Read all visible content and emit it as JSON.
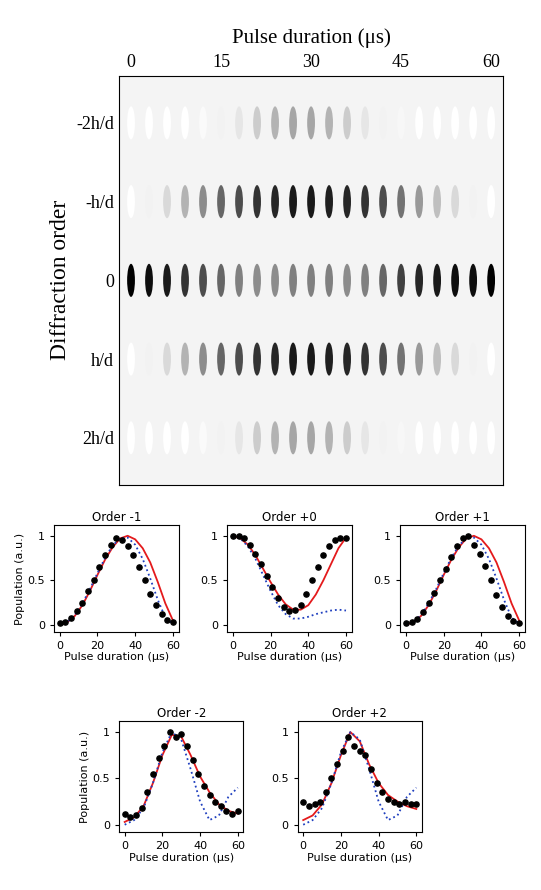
{
  "chart_data": [
    {
      "type": "heatmap",
      "xlabel": "Pulse duration (μs)",
      "ylabel": "Diffraction order",
      "categories": [
        "-2h/d",
        "-h/d",
        "0",
        "h/d",
        "2h/d"
      ],
      "x": [
        0,
        3,
        6,
        9,
        12,
        15,
        18,
        21,
        24,
        27,
        30,
        33,
        36,
        39,
        42,
        45,
        48,
        51,
        54,
        57,
        60
      ],
      "cells": [
        [
          0,
          0,
          0,
          0,
          0.02,
          0.05,
          0.1,
          0.2,
          0.3,
          0.35,
          0.35,
          0.3,
          0.2,
          0.1,
          0.05,
          0.03,
          0,
          0,
          0,
          0,
          0
        ],
        [
          0,
          0.05,
          0.15,
          0.3,
          0.45,
          0.6,
          0.7,
          0.8,
          0.85,
          0.9,
          0.9,
          0.88,
          0.85,
          0.8,
          0.7,
          0.55,
          0.4,
          0.25,
          0.15,
          0.05,
          0
        ],
        [
          1,
          0.95,
          0.9,
          0.8,
          0.7,
          0.6,
          0.5,
          0.45,
          0.45,
          0.5,
          0.5,
          0.5,
          0.45,
          0.5,
          0.6,
          0.75,
          0.85,
          0.9,
          0.95,
          0.95,
          1
        ],
        [
          0,
          0.05,
          0.15,
          0.3,
          0.45,
          0.6,
          0.7,
          0.8,
          0.85,
          0.9,
          0.9,
          0.88,
          0.85,
          0.8,
          0.7,
          0.55,
          0.4,
          0.25,
          0.15,
          0.05,
          0
        ],
        [
          0,
          0,
          0,
          0,
          0.02,
          0.05,
          0.1,
          0.2,
          0.3,
          0.35,
          0.35,
          0.3,
          0.2,
          0.1,
          0.05,
          0.03,
          0,
          0,
          0,
          0,
          0
        ]
      ],
      "xlim": [
        -2,
        62
      ],
      "xticks": [
        0,
        15,
        30,
        45,
        60
      ],
      "color": "#000000"
    },
    {
      "type": "line",
      "title": "Order -1",
      "xlabel": "Pulse duration (μs)",
      "ylabel": "Population (a.u.)",
      "xlim": [
        -3,
        63
      ],
      "xticks": [
        0,
        20,
        40,
        60
      ],
      "ylim": [
        -0.08,
        1.12
      ],
      "yticks": [
        0,
        0.5,
        1
      ],
      "series": [
        {
          "type": "scatter",
          "color": "#000000",
          "marker": "circle",
          "x": [
            0,
            3,
            6,
            9,
            12,
            15,
            18,
            21,
            24,
            27,
            30,
            33,
            36,
            39,
            42,
            45,
            48,
            51,
            54,
            57,
            60
          ],
          "values": [
            0.02,
            0.03,
            0.08,
            0.15,
            0.25,
            0.38,
            0.5,
            0.65,
            0.78,
            0.9,
            0.98,
            0.95,
            0.88,
            0.78,
            0.65,
            0.5,
            0.35,
            0.22,
            0.12,
            0.05,
            0.03
          ]
        },
        {
          "type": "line",
          "color": "#e41a1c",
          "line_style": "solid",
          "x": [
            0,
            4,
            8,
            12,
            16,
            20,
            24,
            28,
            32,
            36,
            40,
            44,
            48,
            52,
            56,
            60
          ],
          "values": [
            0,
            0.03,
            0.1,
            0.22,
            0.38,
            0.56,
            0.73,
            0.87,
            0.97,
            1.0,
            0.96,
            0.86,
            0.7,
            0.48,
            0.24,
            0.05
          ]
        },
        {
          "type": "line",
          "color": "#1f3fbf",
          "line_style": "dotted",
          "x": [
            0,
            4,
            8,
            12,
            16,
            20,
            24,
            28,
            32,
            36,
            40,
            44,
            48,
            52,
            56,
            60
          ],
          "values": [
            0,
            0.03,
            0.11,
            0.24,
            0.4,
            0.58,
            0.75,
            0.89,
            0.97,
            0.98,
            0.9,
            0.74,
            0.52,
            0.28,
            0.08,
            0.01
          ]
        }
      ]
    },
    {
      "type": "line",
      "title": "Order +0",
      "xlabel": "Pulse duration (μs)",
      "xlim": [
        -3,
        63
      ],
      "xticks": [
        0,
        20,
        40,
        60
      ],
      "ylim": [
        -0.08,
        1.12
      ],
      "yticks": [
        0,
        0.5,
        1
      ],
      "series": [
        {
          "type": "scatter",
          "color": "#000000",
          "marker": "circle",
          "x": [
            0,
            3,
            6,
            9,
            12,
            15,
            18,
            21,
            24,
            27,
            30,
            33,
            36,
            39,
            42,
            45,
            48,
            51,
            54,
            57,
            60
          ],
          "values": [
            1,
            1,
            0.97,
            0.9,
            0.8,
            0.68,
            0.55,
            0.42,
            0.3,
            0.2,
            0.15,
            0.17,
            0.22,
            0.35,
            0.5,
            0.65,
            0.78,
            0.88,
            0.95,
            0.98,
            0.98
          ]
        },
        {
          "type": "line",
          "color": "#e41a1c",
          "line_style": "solid",
          "x": [
            0,
            4,
            8,
            12,
            16,
            20,
            24,
            28,
            32,
            36,
            40,
            44,
            48,
            52,
            56,
            60
          ],
          "values": [
            1,
            0.97,
            0.9,
            0.78,
            0.63,
            0.48,
            0.34,
            0.23,
            0.17,
            0.17,
            0.22,
            0.34,
            0.5,
            0.68,
            0.86,
            0.98
          ]
        },
        {
          "type": "line",
          "color": "#1f3fbf",
          "line_style": "dotted",
          "x": [
            0,
            4,
            8,
            12,
            16,
            20,
            24,
            28,
            32,
            36,
            40,
            44,
            48,
            52,
            56,
            60
          ],
          "values": [
            1,
            0.97,
            0.88,
            0.74,
            0.56,
            0.38,
            0.22,
            0.12,
            0.07,
            0.07,
            0.09,
            0.12,
            0.14,
            0.16,
            0.17,
            0.16
          ]
        }
      ]
    },
    {
      "type": "line",
      "title": "Order +1",
      "xlabel": "Pulse duration (μs)",
      "xlim": [
        -3,
        63
      ],
      "xticks": [
        0,
        20,
        40,
        60
      ],
      "ylim": [
        -0.08,
        1.12
      ],
      "yticks": [
        0,
        0.5,
        1
      ],
      "series": [
        {
          "type": "scatter",
          "color": "#000000",
          "marker": "circle",
          "x": [
            0,
            3,
            6,
            9,
            12,
            15,
            18,
            21,
            24,
            27,
            30,
            33,
            36,
            39,
            42,
            45,
            48,
            51,
            54,
            57,
            60
          ],
          "values": [
            0.02,
            0.03,
            0.07,
            0.14,
            0.24,
            0.36,
            0.5,
            0.63,
            0.76,
            0.88,
            0.97,
            1.0,
            0.9,
            0.8,
            0.66,
            0.5,
            0.34,
            0.2,
            0.1,
            0.04,
            0.02
          ]
        },
        {
          "type": "line",
          "color": "#e41a1c",
          "line_style": "solid",
          "x": [
            0,
            4,
            8,
            12,
            16,
            20,
            24,
            28,
            32,
            36,
            40,
            44,
            48,
            52,
            56,
            60
          ],
          "values": [
            0,
            0.03,
            0.1,
            0.22,
            0.38,
            0.56,
            0.73,
            0.87,
            0.97,
            1.0,
            0.96,
            0.86,
            0.7,
            0.48,
            0.24,
            0.05
          ]
        },
        {
          "type": "line",
          "color": "#1f3fbf",
          "line_style": "dotted",
          "x": [
            0,
            4,
            8,
            12,
            16,
            20,
            24,
            28,
            32,
            36,
            40,
            44,
            48,
            52,
            56,
            60
          ],
          "values": [
            0,
            0.03,
            0.11,
            0.24,
            0.4,
            0.58,
            0.75,
            0.89,
            0.97,
            0.98,
            0.9,
            0.74,
            0.52,
            0.28,
            0.08,
            0.01
          ]
        }
      ]
    },
    {
      "type": "line",
      "title": "Order -2",
      "xlabel": "Pulse duration (μs)",
      "ylabel": "Population (a.u.)",
      "xlim": [
        -3,
        63
      ],
      "xticks": [
        0,
        20,
        40,
        60
      ],
      "ylim": [
        -0.08,
        1.12
      ],
      "yticks": [
        0,
        0.5,
        1
      ],
      "series": [
        {
          "type": "scatter",
          "color": "#000000",
          "marker": "circle",
          "x": [
            0,
            3,
            6,
            9,
            12,
            15,
            18,
            21,
            24,
            27,
            30,
            33,
            36,
            39,
            42,
            45,
            48,
            51,
            54,
            57,
            60
          ],
          "values": [
            0.12,
            0.08,
            0.1,
            0.18,
            0.35,
            0.55,
            0.72,
            0.85,
            1.0,
            0.95,
            0.98,
            0.85,
            0.7,
            0.55,
            0.42,
            0.32,
            0.25,
            0.2,
            0.15,
            0.12,
            0.15
          ]
        },
        {
          "type": "line",
          "color": "#e41a1c",
          "line_style": "solid",
          "x": [
            0,
            5,
            10,
            15,
            20,
            25,
            30,
            35,
            40,
            45,
            50,
            55,
            60
          ],
          "values": [
            0.03,
            0.08,
            0.2,
            0.45,
            0.75,
            0.97,
            0.95,
            0.75,
            0.52,
            0.35,
            0.22,
            0.15,
            0.12
          ]
        },
        {
          "type": "line",
          "color": "#1f3fbf",
          "line_style": "dotted",
          "x": [
            0,
            5,
            10,
            15,
            20,
            25,
            30,
            35,
            40,
            45,
            50,
            55,
            60
          ],
          "values": [
            0,
            0.05,
            0.18,
            0.45,
            0.78,
            1.0,
            0.92,
            0.6,
            0.25,
            0.05,
            0.1,
            0.3,
            0.4
          ]
        }
      ]
    },
    {
      "type": "line",
      "title": "Order +2",
      "xlabel": "Pulse duration (μs)",
      "xlim": [
        -3,
        63
      ],
      "xticks": [
        0,
        20,
        40,
        60
      ],
      "ylim": [
        -0.08,
        1.12
      ],
      "yticks": [
        0,
        0.5,
        1
      ],
      "series": [
        {
          "type": "scatter",
          "color": "#000000",
          "marker": "circle",
          "x": [
            0,
            3,
            6,
            9,
            12,
            15,
            18,
            21,
            24,
            27,
            30,
            33,
            36,
            39,
            42,
            45,
            48,
            51,
            54,
            57,
            60
          ],
          "values": [
            0.25,
            0.2,
            0.22,
            0.25,
            0.35,
            0.5,
            0.65,
            0.8,
            0.95,
            0.85,
            0.8,
            0.75,
            0.6,
            0.45,
            0.35,
            0.28,
            0.25,
            0.22,
            0.25,
            0.22,
            0.22
          ]
        },
        {
          "type": "line",
          "color": "#e41a1c",
          "line_style": "solid",
          "x": [
            0,
            5,
            10,
            15,
            20,
            25,
            30,
            35,
            40,
            45,
            50,
            55,
            60
          ],
          "values": [
            0.05,
            0.1,
            0.22,
            0.45,
            0.75,
            1.0,
            0.9,
            0.65,
            0.45,
            0.32,
            0.25,
            0.2,
            0.17
          ]
        },
        {
          "type": "line",
          "color": "#1f3fbf",
          "line_style": "dotted",
          "x": [
            0,
            5,
            10,
            15,
            20,
            25,
            30,
            35,
            40,
            45,
            50,
            55,
            60
          ],
          "values": [
            0,
            0.05,
            0.18,
            0.45,
            0.78,
            1.0,
            0.92,
            0.6,
            0.25,
            0.05,
            0.1,
            0.3,
            0.4
          ]
        }
      ]
    }
  ]
}
